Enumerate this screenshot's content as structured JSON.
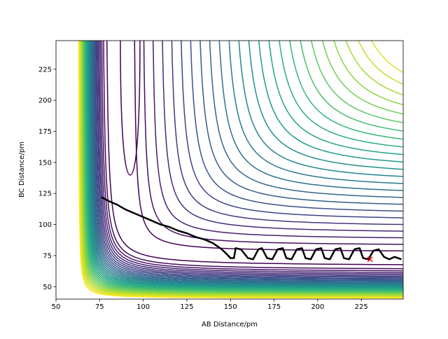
{
  "chart_data": {
    "type": "contour",
    "x_label": "AB Distance/pm",
    "y_label": "BC Distance/pm",
    "xlim": [
      50,
      249
    ],
    "ylim": [
      40,
      248
    ],
    "xticks": [
      50,
      75,
      100,
      125,
      150,
      175,
      200,
      225
    ],
    "yticks": [
      50,
      75,
      100,
      125,
      150,
      175,
      200,
      225
    ],
    "trajectory": {
      "color": "#000000",
      "x": [
        76,
        80,
        85,
        90,
        95,
        100,
        105,
        110,
        115,
        120,
        125,
        130,
        135,
        140,
        145,
        148,
        150,
        152,
        153,
        156,
        160,
        163,
        166,
        168,
        171,
        174,
        177,
        180,
        182,
        185,
        188,
        191,
        193,
        196,
        199,
        202,
        204,
        207,
        210,
        213,
        215,
        218,
        221,
        224,
        226,
        229,
        232,
        235,
        238,
        241,
        244,
        248
      ],
      "values": [
        122,
        119,
        116,
        112,
        109,
        106,
        103,
        100,
        98,
        95,
        93,
        90,
        88,
        85,
        80,
        76,
        73,
        73,
        81,
        80,
        73,
        72,
        80,
        81,
        73,
        72,
        80,
        81,
        73,
        72,
        80,
        81,
        73,
        72,
        80,
        81,
        73,
        72,
        80,
        81,
        73,
        72,
        80,
        81,
        73,
        72,
        79,
        80,
        74,
        72,
        74,
        72
      ]
    },
    "end_point": {
      "x": 230,
      "y": 72,
      "color": "#ff0000"
    }
  }
}
